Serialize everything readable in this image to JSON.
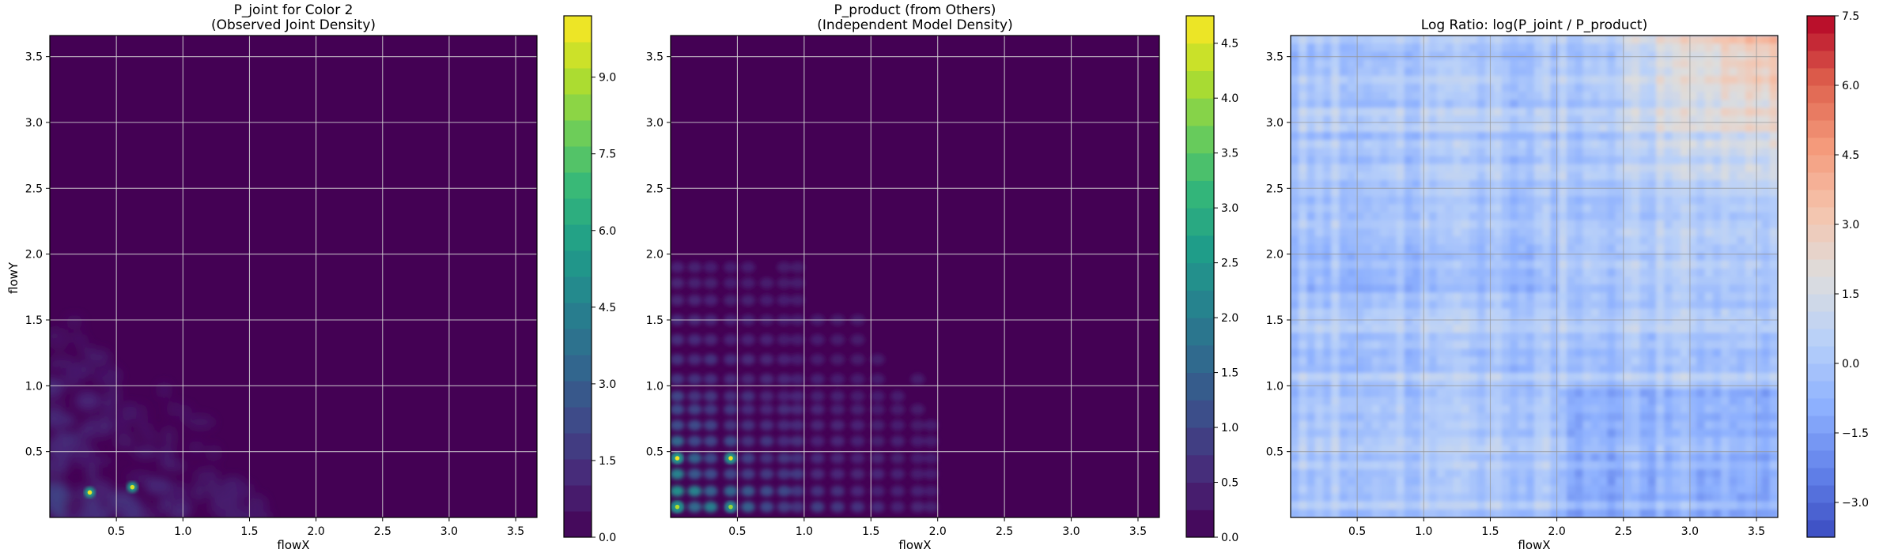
{
  "chart_data": [
    {
      "type": "heatmap",
      "title_lines": [
        "P_joint for Color 2",
        "(Observed Joint Density)"
      ],
      "xlabel": "flowX",
      "ylabel": "flowY",
      "xlim": [
        0.0,
        3.66
      ],
      "ylim": [
        0.0,
        3.66
      ],
      "xticks": [
        "0.5",
        "1.0",
        "1.5",
        "2.0",
        "2.5",
        "3.0",
        "3.5"
      ],
      "yticks": [
        "0.5",
        "1.0",
        "1.5",
        "2.0",
        "2.5",
        "3.0",
        "3.5"
      ],
      "grid": true,
      "colormap": "viridis",
      "colorbar": {
        "range": [
          0.0,
          10.2
        ],
        "levels": 20,
        "ticks": [
          "0.0",
          "1.5",
          "3.0",
          "4.5",
          "6.0",
          "7.5",
          "9.0"
        ],
        "tick_values": [
          0.0,
          1.5,
          3.0,
          4.5,
          6.0,
          7.5,
          9.0
        ]
      },
      "hotspots": [
        {
          "x": 0.3,
          "y": 0.19,
          "value": 9.9
        },
        {
          "x": 0.62,
          "y": 0.23,
          "value": 9.6
        }
      ]
    },
    {
      "type": "heatmap",
      "title_lines": [
        "P_product (from Others)",
        "(Independent Model Density)"
      ],
      "xlabel": "flowX",
      "ylabel": "",
      "xlim": [
        0.0,
        3.66
      ],
      "ylim": [
        0.0,
        3.66
      ],
      "xticks": [
        "0.5",
        "1.0",
        "1.5",
        "2.0",
        "2.5",
        "3.0",
        "3.5"
      ],
      "yticks": [
        "0.5",
        "1.0",
        "1.5",
        "2.0",
        "2.5",
        "3.0",
        "3.5"
      ],
      "grid": true,
      "colormap": "viridis",
      "colorbar": {
        "range": [
          0.0,
          4.75
        ],
        "levels": 19,
        "ticks": [
          "0.0",
          "0.5",
          "1.0",
          "1.5",
          "2.0",
          "2.5",
          "3.0",
          "3.5",
          "4.0",
          "4.5"
        ],
        "tick_values": [
          0.0,
          0.5,
          1.0,
          1.5,
          2.0,
          2.5,
          3.0,
          3.5,
          4.0,
          4.5
        ]
      },
      "hotspots": [
        {
          "x": 0.05,
          "y": 0.45,
          "value": 4.7
        },
        {
          "x": 0.45,
          "y": 0.45,
          "value": 4.6
        },
        {
          "x": 0.05,
          "y": 0.08,
          "value": 4.2
        },
        {
          "x": 0.45,
          "y": 0.08,
          "value": 4.0
        }
      ]
    },
    {
      "type": "heatmap",
      "title_lines": [
        "Log Ratio: log(P_joint / P_product)"
      ],
      "xlabel": "flowX",
      "ylabel": "",
      "xlim": [
        0.0,
        3.66
      ],
      "ylim": [
        0.0,
        3.66
      ],
      "xticks": [
        "0.5",
        "1.0",
        "1.5",
        "2.0",
        "2.5",
        "3.0",
        "3.5"
      ],
      "yticks": [
        "0.5",
        "1.0",
        "1.5",
        "2.0",
        "2.5",
        "3.0",
        "3.5"
      ],
      "grid": true,
      "colormap": "coolwarm",
      "colorbar": {
        "range": [
          -3.75,
          7.5
        ],
        "levels": 30,
        "ticks": [
          "−3.0",
          "−1.5",
          "0.0",
          "1.5",
          "3.0",
          "4.5",
          "6.0",
          "7.5"
        ],
        "tick_values": [
          -3.0,
          -1.5,
          0.0,
          1.5,
          3.0,
          4.5,
          6.0,
          7.5
        ]
      }
    }
  ]
}
